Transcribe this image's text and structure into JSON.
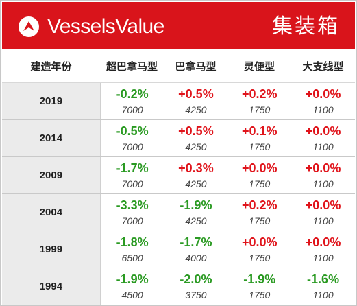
{
  "header": {
    "brand": "VesselsValue",
    "region": "集装箱"
  },
  "table": {
    "columns": [
      "建造年份",
      "超巴拿马型",
      "巴拿马型",
      "灵便型",
      "大支线型"
    ],
    "rows": [
      {
        "year": "2019",
        "cells": [
          {
            "pct": "-0.2%",
            "val": "7000",
            "dir": "neg"
          },
          {
            "pct": "+0.5%",
            "val": "4250",
            "dir": "pos"
          },
          {
            "pct": "+0.2%",
            "val": "1750",
            "dir": "pos"
          },
          {
            "pct": "+0.0%",
            "val": "1100",
            "dir": "pos"
          }
        ]
      },
      {
        "year": "2014",
        "cells": [
          {
            "pct": "-0.5%",
            "val": "7000",
            "dir": "neg"
          },
          {
            "pct": "+0.5%",
            "val": "4250",
            "dir": "pos"
          },
          {
            "pct": "+0.1%",
            "val": "1750",
            "dir": "pos"
          },
          {
            "pct": "+0.0%",
            "val": "1100",
            "dir": "pos"
          }
        ]
      },
      {
        "year": "2009",
        "cells": [
          {
            "pct": "-1.7%",
            "val": "7000",
            "dir": "neg"
          },
          {
            "pct": "+0.3%",
            "val": "4250",
            "dir": "pos"
          },
          {
            "pct": "+0.0%",
            "val": "1750",
            "dir": "pos"
          },
          {
            "pct": "+0.0%",
            "val": "1100",
            "dir": "pos"
          }
        ]
      },
      {
        "year": "2004",
        "cells": [
          {
            "pct": "-3.3%",
            "val": "7000",
            "dir": "neg"
          },
          {
            "pct": "-1.9%",
            "val": "4250",
            "dir": "neg"
          },
          {
            "pct": "+0.2%",
            "val": "1750",
            "dir": "pos"
          },
          {
            "pct": "+0.0%",
            "val": "1100",
            "dir": "pos"
          }
        ]
      },
      {
        "year": "1999",
        "cells": [
          {
            "pct": "-1.8%",
            "val": "6500",
            "dir": "neg"
          },
          {
            "pct": "-1.7%",
            "val": "4000",
            "dir": "neg"
          },
          {
            "pct": "+0.0%",
            "val": "1750",
            "dir": "pos"
          },
          {
            "pct": "+0.0%",
            "val": "1100",
            "dir": "pos"
          }
        ]
      },
      {
        "year": "1994",
        "cells": [
          {
            "pct": "-1.9%",
            "val": "4500",
            "dir": "neg"
          },
          {
            "pct": "-2.0%",
            "val": "3750",
            "dir": "neg"
          },
          {
            "pct": "-1.9%",
            "val": "1750",
            "dir": "neg"
          },
          {
            "pct": "-1.6%",
            "val": "1100",
            "dir": "neg"
          }
        ]
      }
    ]
  },
  "colors": {
    "brand_red": "#d9141b",
    "negative": "#2a9a22",
    "positive": "#e0141b",
    "year_bg": "#ebebeb"
  },
  "icons": {
    "logo": "vesselsvalue-logo-icon"
  }
}
